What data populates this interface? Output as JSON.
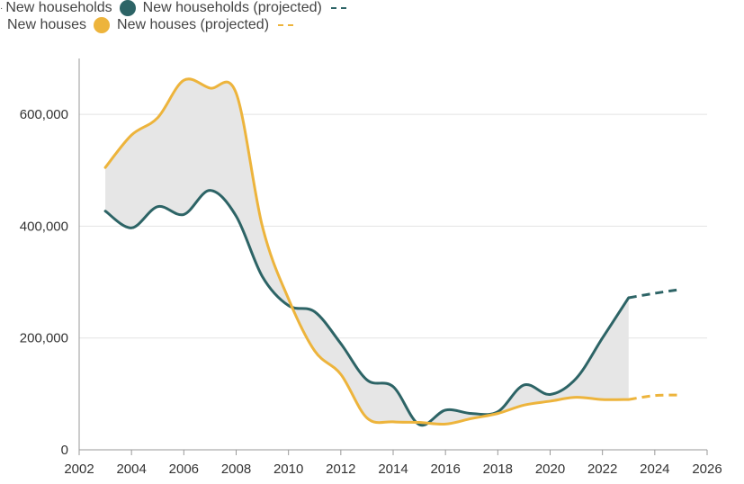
{
  "legend": {
    "row1": {
      "lead": "·",
      "series_a_label": "New households",
      "series_b_label": "New households (projected)"
    },
    "row2": {
      "series_a_label": "New houses",
      "series_b_label": "New houses (projected)"
    }
  },
  "colors": {
    "households": "#2d6466",
    "houses": "#edb43c",
    "gap_fill": "#e6e6e6",
    "grid": "#e3e3e3",
    "axis": "#999999"
  },
  "chart_data": {
    "type": "line",
    "xlim": [
      2002,
      2026
    ],
    "ylim": [
      0,
      700000
    ],
    "x_ticks": [
      2002,
      2004,
      2006,
      2008,
      2010,
      2012,
      2014,
      2016,
      2018,
      2020,
      2022,
      2024,
      2026
    ],
    "y_ticks": [
      0,
      200000,
      400000,
      600000
    ],
    "y_tick_labels": [
      "0",
      "200,000",
      "400,000",
      "600,000"
    ],
    "grid": "horizontal",
    "legend_position": "top-left",
    "shaded_gap_between_series": true,
    "series": [
      {
        "name": "New households",
        "color_key": "households",
        "style": "solid",
        "x": [
          2003,
          2004,
          2005,
          2006,
          2007,
          2008,
          2009,
          2010,
          2011,
          2012,
          2013,
          2014,
          2015,
          2016,
          2017,
          2018,
          2019,
          2020,
          2021,
          2022,
          2023
        ],
        "y": [
          427000,
          397000,
          435000,
          421000,
          464000,
          418000,
          310000,
          258000,
          247000,
          190000,
          125000,
          113000,
          45000,
          71000,
          65000,
          68000,
          116000,
          99000,
          128000,
          200000,
          272000
        ]
      },
      {
        "name": "New households (projected)",
        "color_key": "households",
        "style": "dashed",
        "x": [
          2023,
          2024,
          2025
        ],
        "y": [
          272000,
          280000,
          287000
        ]
      },
      {
        "name": "New houses",
        "color_key": "houses",
        "style": "solid",
        "x": [
          2003,
          2004,
          2005,
          2006,
          2007,
          2008,
          2009,
          2010,
          2011,
          2012,
          2013,
          2014,
          2015,
          2016,
          2017,
          2018,
          2019,
          2020,
          2021,
          2022,
          2023
        ],
        "y": [
          505000,
          563000,
          594000,
          661000,
          647000,
          638000,
          400000,
          270000,
          177000,
          135000,
          57000,
          50000,
          49000,
          46000,
          56000,
          65000,
          80000,
          87000,
          94000,
          90000,
          90000
        ]
      },
      {
        "name": "New houses (projected)",
        "color_key": "houses",
        "style": "dashed",
        "x": [
          2023,
          2024,
          2025
        ],
        "y": [
          90000,
          97000,
          98000
        ]
      }
    ]
  }
}
